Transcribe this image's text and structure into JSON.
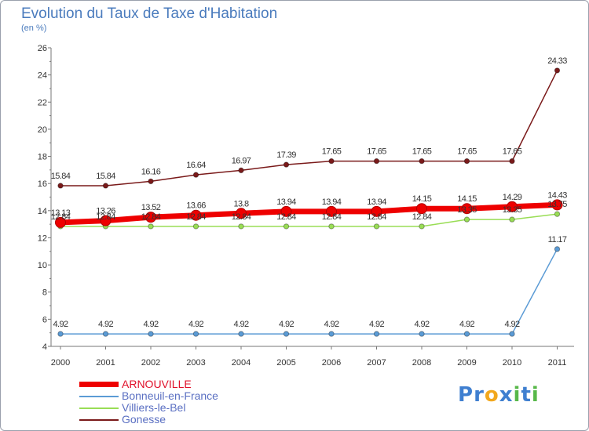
{
  "chart_data": {
    "type": "line",
    "title": "Evolution du Taux de Taxe d'Habitation",
    "subtitle": "(en %)",
    "x": [
      "2000",
      "2001",
      "2002",
      "2003",
      "2004",
      "2005",
      "2006",
      "2007",
      "2008",
      "2009",
      "2010",
      "2011"
    ],
    "ylim": [
      4,
      26
    ],
    "yticks": [
      4,
      6,
      8,
      10,
      12,
      14,
      16,
      18,
      20,
      22,
      24,
      26
    ],
    "grid": false,
    "legend_position": "bottom-left",
    "series": [
      {
        "name": "ARNOUVILLE",
        "color": "#ee0000",
        "values": [
          13.13,
          13.26,
          13.52,
          13.66,
          13.8,
          13.94,
          13.94,
          13.94,
          14.15,
          14.15,
          14.29,
          14.43
        ],
        "labels": [
          "13.13",
          "13.26",
          "13.52",
          "13.66",
          "13.8",
          "13.94",
          "13.94",
          "13.94",
          "14.15",
          "14.15",
          "14.29",
          "14.43"
        ]
      },
      {
        "name": "Bonneuil-en-France",
        "color": "#5b9bd5",
        "values": [
          4.92,
          4.92,
          4.92,
          4.92,
          4.92,
          4.92,
          4.92,
          4.92,
          4.92,
          4.92,
          4.92,
          11.17
        ],
        "labels": [
          "4.92",
          "4.92",
          "4.92",
          "4.92",
          "4.92",
          "4.92",
          "4.92",
          "4.92",
          "4.92",
          "4.92",
          "4.92",
          "11.17"
        ]
      },
      {
        "name": "Villiers-le-Bel",
        "color": "#99dd55",
        "values": [
          12.84,
          12.84,
          12.84,
          12.84,
          12.84,
          12.84,
          12.84,
          12.84,
          12.84,
          13.35,
          13.35,
          13.75
        ],
        "labels": [
          "12.84",
          "12.84",
          "12.84",
          "12.84",
          "12.84",
          "12.84",
          "12.84",
          "12.84",
          "12.84",
          "13.35",
          "13.35",
          "13.75"
        ]
      },
      {
        "name": "Gonesse",
        "color": "#7a1a1a",
        "values": [
          15.84,
          15.84,
          16.16,
          16.64,
          16.97,
          17.39,
          17.65,
          17.65,
          17.65,
          17.65,
          17.65,
          24.33
        ],
        "labels": [
          "15.84",
          "15.84",
          "16.16",
          "16.64",
          "16.97",
          "17.39",
          "17.65",
          "17.65",
          "17.65",
          "17.65",
          "17.65",
          "24.33"
        ]
      }
    ]
  },
  "brand": {
    "text": "Proxiti",
    "letters": [
      "P",
      "r",
      "o",
      "x",
      "i",
      "t",
      "i"
    ],
    "letter_colors": [
      "#3f7fd0",
      "#3f7fd0",
      "#f2a81d",
      "#3f7fd0",
      "#58b84a",
      "#3f7fd0",
      "#58b84a"
    ]
  }
}
